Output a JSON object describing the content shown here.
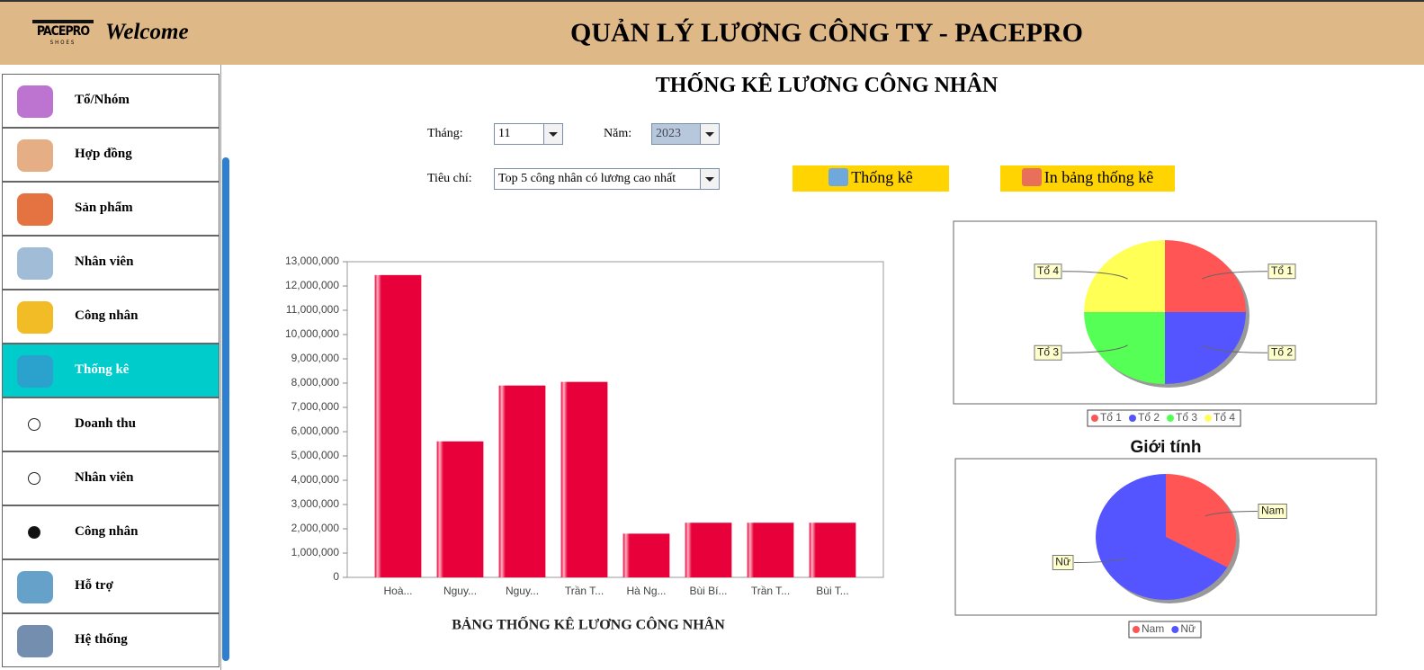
{
  "header": {
    "logo": "PACEPRO",
    "logo_sub": "SHOES",
    "welcome": "Welcome",
    "title": "QUẢN LÝ LƯƠNG CÔNG TY - PACEPRO"
  },
  "sidebar": {
    "items": [
      {
        "label": "Tổ/Nhóm"
      },
      {
        "label": "Hợp đồng"
      },
      {
        "label": "Sản phẩm"
      },
      {
        "label": "Nhân viên"
      },
      {
        "label": "Công nhân"
      },
      {
        "label": "Thống kê",
        "active": true
      },
      {
        "label": "Doanh thu",
        "radio": true
      },
      {
        "label": "Nhân viên",
        "radio": true
      },
      {
        "label": "Công nhân",
        "radio": true,
        "selected": true
      },
      {
        "label": "Hỗ trợ"
      },
      {
        "label": "Hệ thống"
      }
    ]
  },
  "content": {
    "title": "THỐNG KÊ LƯƠNG CÔNG NHÂN",
    "filters": {
      "month_label": "Tháng:",
      "month": "11",
      "year_label": "Năm:",
      "year": "2023",
      "criteria_label": "Tiêu chí:",
      "criteria": "Top 5 công nhân có lương cao nhất"
    },
    "buttons": {
      "stats": "Thống kê",
      "print": "In bảng thống kê"
    }
  },
  "chart_data": [
    {
      "type": "bar",
      "title": "BẢNG THỐNG KÊ LƯƠNG CÔNG NHÂN",
      "categories": [
        "Hoà...",
        "Nguy...",
        "Nguy...",
        "Trần T...",
        "Hà Ng...",
        "Bùi Bí...",
        "Trần T...",
        "Bùi T..."
      ],
      "values": [
        12450000,
        5600000,
        7900000,
        8050000,
        1800000,
        2250000,
        2250000,
        2250000
      ],
      "color": "#e8003a",
      "ylim": [
        0,
        13000000
      ],
      "yticks": [
        0,
        {
          "value": 1000000,
          "label": "1,000,000"
        },
        {
          "value": 2000000,
          "label": "2,000,000"
        },
        {
          "value": 3000000,
          "label": "3,000,000"
        },
        {
          "value": 4000000,
          "label": "4,000,000"
        },
        {
          "value": 5000000,
          "label": "5,000,000"
        },
        {
          "value": 6000000,
          "label": "6,000,000"
        },
        {
          "value": 7000000,
          "label": "7,000,000"
        },
        {
          "value": 8000000,
          "label": "8,000,000"
        },
        {
          "value": 9000000,
          "label": "9,000,000"
        },
        {
          "value": 10000000,
          "label": "10,000,000"
        },
        {
          "value": 11000000,
          "label": "11,000,000"
        },
        {
          "value": 12000000,
          "label": "12,000,000"
        },
        {
          "value": 13000000,
          "label": "13,000,000"
        }
      ],
      "grid": false
    },
    {
      "type": "pie",
      "categories": [
        "Tổ 1",
        "Tổ 2",
        "Tổ 3",
        "Tổ 4"
      ],
      "values": [
        25,
        25,
        25,
        25
      ],
      "colors": [
        "#ff5555",
        "#5555ff",
        "#55ff55",
        "#ffff55"
      ],
      "legend": "bottom"
    },
    {
      "type": "pie",
      "title": "Giới tính",
      "categories": [
        "Nam",
        "Nữ"
      ],
      "values": [
        33,
        67
      ],
      "colors": [
        "#ff5555",
        "#5555ff"
      ],
      "legend": "bottom"
    }
  ]
}
